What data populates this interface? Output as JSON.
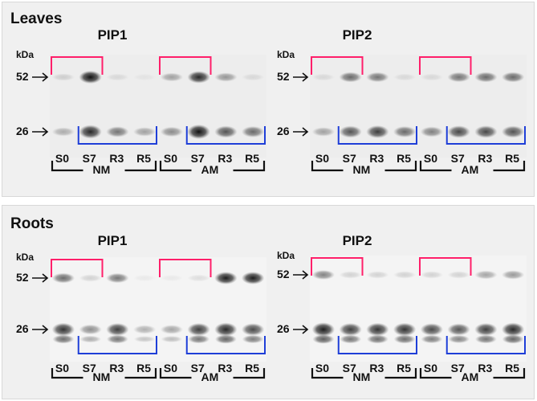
{
  "figure": {
    "sections": [
      {
        "id": "leaves",
        "title": "Leaves",
        "panels": [
          {
            "title": "PIP1",
            "unit": "kDa",
            "markers": [
              "52",
              "26"
            ],
            "lanes": [
              "S0",
              "S7",
              "R3",
              "R5",
              "S0",
              "S7",
              "R3",
              "R5"
            ],
            "groups": [
              "NM",
              "AM"
            ],
            "band_intensity_52": [
              0.15,
              1.0,
              0.1,
              0.05,
              0.35,
              0.9,
              0.4,
              0.1
            ],
            "band_intensity_26": [
              0.3,
              0.9,
              0.55,
              0.35,
              0.45,
              1.0,
              0.7,
              0.6
            ]
          },
          {
            "title": "PIP2",
            "unit": "kDa",
            "markers": [
              "52",
              "26"
            ],
            "lanes": [
              "S0",
              "S7",
              "R3",
              "R5",
              "S0",
              "S7",
              "R3",
              "R5"
            ],
            "groups": [
              "NM",
              "AM"
            ],
            "band_intensity_52": [
              0.1,
              0.6,
              0.55,
              0.1,
              0.1,
              0.55,
              0.6,
              0.6
            ],
            "band_intensity_26": [
              0.35,
              0.7,
              0.8,
              0.6,
              0.5,
              0.75,
              0.75,
              0.7
            ]
          }
        ]
      },
      {
        "id": "roots",
        "title": "Roots",
        "panels": [
          {
            "title": "PIP1",
            "unit": "kDa",
            "markers": [
              "52",
              "26"
            ],
            "lanes": [
              "S0",
              "S7",
              "R3",
              "R5",
              "S0",
              "S7",
              "R3",
              "R5"
            ],
            "groups": [
              "NM",
              "AM"
            ],
            "band_intensity_52": [
              0.6,
              0.15,
              0.55,
              0.05,
              0.05,
              0.1,
              0.95,
              0.95
            ],
            "band_intensity_26": [
              0.85,
              0.45,
              0.8,
              0.3,
              0.35,
              0.8,
              0.9,
              0.75
            ]
          },
          {
            "title": "PIP2",
            "unit": "kDa",
            "markers": [
              "52",
              "26"
            ],
            "lanes": [
              "S0",
              "S7",
              "R3",
              "R5",
              "S0",
              "S7",
              "R3",
              "R5"
            ],
            "groups": [
              "NM",
              "AM"
            ],
            "band_intensity_52": [
              0.5,
              0.15,
              0.15,
              0.15,
              0.15,
              0.15,
              0.35,
              0.4
            ],
            "band_intensity_26": [
              0.95,
              0.8,
              0.85,
              0.85,
              0.75,
              0.7,
              0.8,
              0.9
            ]
          }
        ]
      }
    ],
    "colors": {
      "pink_bracket": "#ff1f6a",
      "blue_bracket": "#1f3fd8"
    }
  }
}
